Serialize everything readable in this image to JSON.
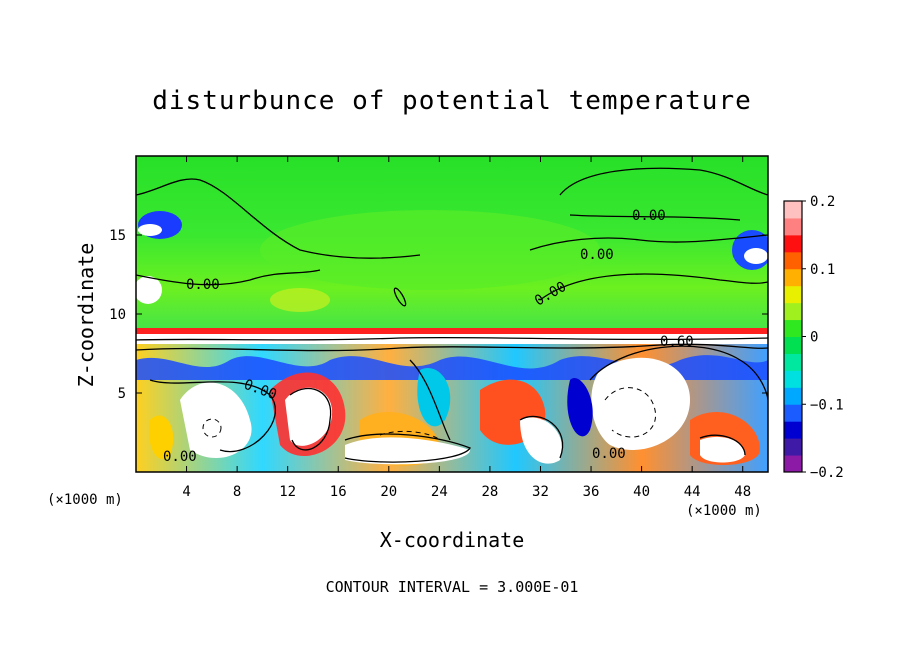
{
  "chart_data": {
    "type": "heatmap",
    "title": "disturbunce of potential temperature",
    "xlabel": "X-coordinate",
    "ylabel": "Z-coordinate",
    "x_unit": "(×1000 m)",
    "z_unit": "(×1000 m)",
    "xlim": [
      0,
      50
    ],
    "ylim": [
      0,
      20
    ],
    "x_ticks": [
      4,
      8,
      12,
      16,
      20,
      24,
      28,
      32,
      36,
      40,
      44,
      48
    ],
    "y_ticks": [
      5,
      10,
      15
    ],
    "colorbar": {
      "min": -0.2,
      "max": 0.2,
      "ticks": [
        0.2,
        0.1,
        0,
        -0.1,
        -0.2
      ],
      "tick_labels": [
        "0.2",
        "0.1",
        "0",
        "−0.1",
        "−0.2"
      ],
      "colors": [
        "#8c1aa6",
        "#3f1aa6",
        "#0000d0",
        "#1a5cff",
        "#00a8ff",
        "#00e0e0",
        "#00e8a0",
        "#00e050",
        "#30e820",
        "#a0f020",
        "#e8f000",
        "#ffb000",
        "#ff6000",
        "#ff1010",
        "#ff8080",
        "#ffc0c0"
      ]
    },
    "contour_interval": "CONTOUR INTERVAL = 3.000E-01",
    "contour_labels": [
      "0.00",
      "0.00",
      "0.00",
      "0.00",
      "0.00",
      "0.00",
      "0.00",
      "0.60"
    ],
    "colors": {
      "upper_layer": "#2ee22e",
      "inversion_band": "#ff2020",
      "cold_anomaly": "#1a4cff",
      "warm_anomaly": "#ff3030",
      "saturated_white": "#ffffff"
    }
  }
}
